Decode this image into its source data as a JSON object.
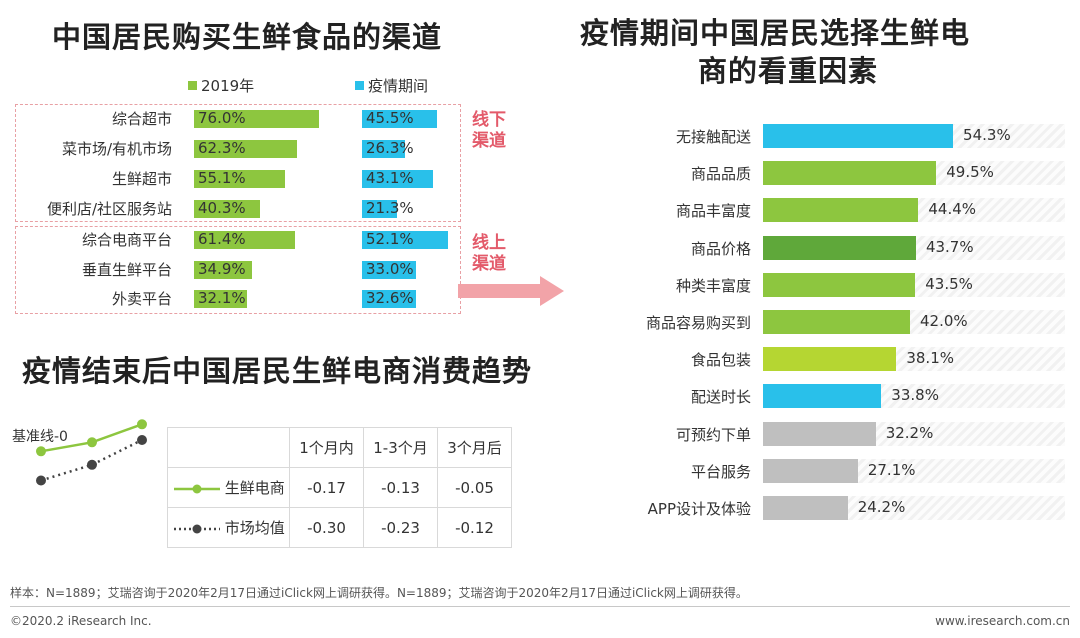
{
  "colors": {
    "green": "#8dc63f",
    "blue": "#29c0ea",
    "dark_green": "#5fa83a",
    "yellow_green": "#b5d632",
    "gray": "#bfbfbf",
    "accent_red": "#e35a6a",
    "arrow": "#f2a3a8"
  },
  "left_title": "中国居民购买生鲜食品的渠道",
  "right_title_line1": "疫情期间中国居民选择生鲜电",
  "right_title_line2": "商的看重因素",
  "bottom_title": "疫情结束后中国居民生鲜电商消费趋势",
  "offline_tag": "线下\n渠道",
  "online_tag": "线上\n渠道",
  "trend_baseline_label": "基准线-0",
  "trend_table": {
    "headers": [
      "1个月内",
      "1-3个月",
      "3个月后"
    ],
    "rows": [
      {
        "name": "生鲜电商",
        "values": [
          "-0.17",
          "-0.13",
          "-0.05"
        ]
      },
      {
        "name": "市场均值",
        "values": [
          "-0.30",
          "-0.23",
          "-0.12"
        ]
      }
    ]
  },
  "footer_note": "样本：N=1889；艾瑞咨询于2020年2月17日通过iClick网上调研获得。N=1889；艾瑞咨询于2020年2月17日通过iClick网上调研获得。",
  "footer_copyright": "©2020.2 iResearch Inc.",
  "footer_url": "www.iresearch.com.cn",
  "chart_data": [
    {
      "type": "bar",
      "title": "中国居民购买生鲜食品的渠道",
      "categories": [
        "综合超市",
        "菜市场/有机市场",
        "生鲜超市",
        "便利店/社区服务站",
        "综合电商平台",
        "垂直生鲜平台",
        "外卖平台"
      ],
      "series": [
        {
          "name": "2019年",
          "values": [
            76.0,
            62.3,
            55.1,
            40.3,
            61.4,
            34.9,
            32.1
          ],
          "labels": [
            "76.0%",
            "62.3%",
            "55.1%",
            "40.3%",
            "61.4%",
            "34.9%",
            "32.1%"
          ]
        },
        {
          "name": "疫情期间",
          "values": [
            45.5,
            26.3,
            43.1,
            21.3,
            52.1,
            33.0,
            32.6
          ],
          "labels": [
            "45.5%",
            "26.3%",
            "43.1%",
            "21.3%",
            "52.1%",
            "33.0%",
            "32.6%"
          ]
        }
      ],
      "legend": "top"
    },
    {
      "type": "bar",
      "title": "疫情期间中国居民选择生鲜电商的看重因素",
      "categories": [
        "无接触配送",
        "商品品质",
        "商品丰富度",
        "商品价格",
        "种类丰富度",
        "商品容易购买到",
        "食品包装",
        "配送时长",
        "可预约下单",
        "平台服务",
        "APP设计及体验"
      ],
      "values": [
        54.3,
        49.5,
        44.4,
        43.7,
        43.5,
        42.0,
        38.1,
        33.8,
        32.2,
        27.1,
        24.2
      ],
      "labels": [
        "54.3%",
        "49.5%",
        "44.4%",
        "43.7%",
        "43.5%",
        "42.0%",
        "38.1%",
        "33.8%",
        "32.2%",
        "27.1%",
        "24.2%"
      ],
      "bar_colors": [
        "#29c0ea",
        "#8dc63f",
        "#8dc63f",
        "#5fa83a",
        "#8dc63f",
        "#8dc63f",
        "#b5d632",
        "#29c0ea",
        "#bfbfbf",
        "#bfbfbf",
        "#bfbfbf"
      ]
    },
    {
      "type": "line",
      "title": "疫情结束后中国居民生鲜电商消费趋势",
      "categories": [
        "1个月内",
        "1-3个月",
        "3个月后"
      ],
      "series": [
        {
          "name": "生鲜电商",
          "values": [
            -0.17,
            -0.13,
            -0.05
          ]
        },
        {
          "name": "市场均值",
          "values": [
            -0.3,
            -0.23,
            -0.12
          ]
        }
      ]
    }
  ]
}
